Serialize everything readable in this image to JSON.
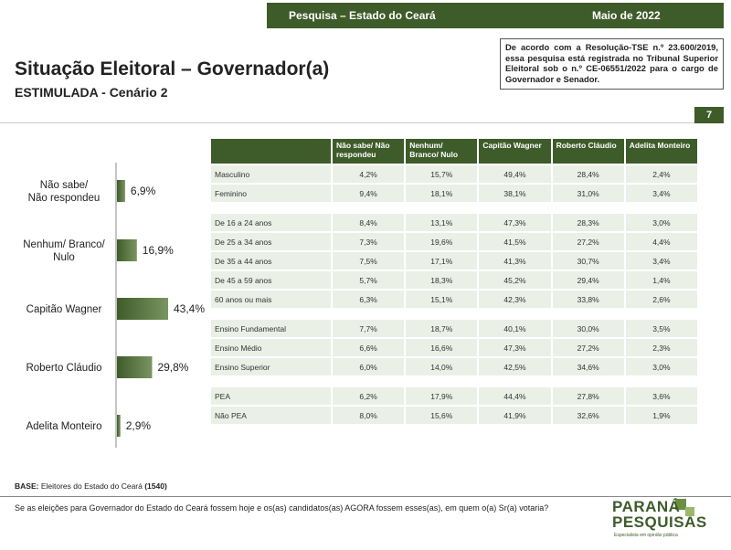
{
  "header": {
    "survey_label": "Pesquisa – Estado do Ceará",
    "date_label": "Maio de 2022",
    "page_number": "7"
  },
  "tse_notice": "De acordo com a Resolução-TSE n.º 23.600/2019, essa pesquisa está registrada no Tribunal Superior Eleitoral sob o n.º CE-06551/2022 para o cargo de Governador e Senador.",
  "title": "Situação Eleitoral – Governador(a)",
  "subtitle": "ESTIMULADA - Cenário 2",
  "chart_data": {
    "type": "bar",
    "orientation": "horizontal",
    "categories": [
      [
        "Não sabe/",
        "Não respondeu"
      ],
      [
        "Nenhum/ Branco/",
        "Nulo"
      ],
      [
        "Capitão Wagner"
      ],
      [
        "Roberto Cláudio"
      ],
      [
        "Adelita Monteiro"
      ]
    ],
    "values": [
      6.9,
      16.9,
      43.4,
      29.8,
      2.9
    ],
    "value_labels": [
      "6,9%",
      "16,9%",
      "43,4%",
      "29,8%",
      "2,9%"
    ],
    "bar_color": "#3e5b2a",
    "xlim": [
      0,
      43.4
    ],
    "grid": false
  },
  "crosstab": {
    "columns": [
      "Não sabe/ Não respondeu",
      "Nenhum/ Branco/ Nulo",
      "Capitão Wagner",
      "Roberto Cláudio",
      "Adelita Monteiro"
    ],
    "groups": [
      {
        "rows": [
          {
            "label": "Masculino",
            "values": [
              "4,2%",
              "15,7%",
              "49,4%",
              "28,4%",
              "2,4%"
            ]
          },
          {
            "label": "Feminino",
            "values": [
              "9,4%",
              "18,1%",
              "38,1%",
              "31,0%",
              "3,4%"
            ]
          }
        ]
      },
      {
        "rows": [
          {
            "label": "De 16 a 24 anos",
            "values": [
              "8,4%",
              "13,1%",
              "47,3%",
              "28,3%",
              "3,0%"
            ]
          },
          {
            "label": "De 25 a 34 anos",
            "values": [
              "7,3%",
              "19,6%",
              "41,5%",
              "27,2%",
              "4,4%"
            ]
          },
          {
            "label": "De 35 a 44 anos",
            "values": [
              "7,5%",
              "17,1%",
              "41,3%",
              "30,7%",
              "3,4%"
            ]
          },
          {
            "label": "De 45 a 59 anos",
            "values": [
              "5,7%",
              "18,3%",
              "45,2%",
              "29,4%",
              "1,4%"
            ]
          },
          {
            "label": "60 anos ou mais",
            "values": [
              "6,3%",
              "15,1%",
              "42,3%",
              "33,8%",
              "2,6%"
            ]
          }
        ]
      },
      {
        "rows": [
          {
            "label": "Ensino Fundamental",
            "values": [
              "7,7%",
              "18,7%",
              "40,1%",
              "30,0%",
              "3,5%"
            ]
          },
          {
            "label": "Ensino Médio",
            "values": [
              "6,6%",
              "16,6%",
              "47,3%",
              "27,2%",
              "2,3%"
            ]
          },
          {
            "label": "Ensino Superior",
            "values": [
              "6,0%",
              "14,0%",
              "42,5%",
              "34,6%",
              "3,0%"
            ]
          }
        ]
      },
      {
        "rows": [
          {
            "label": "PEA",
            "values": [
              "6,2%",
              "17,9%",
              "44,4%",
              "27,8%",
              "3,6%"
            ]
          },
          {
            "label": "Não PEA",
            "values": [
              "8,0%",
              "15,6%",
              "41,9%",
              "32,6%",
              "1,9%"
            ]
          }
        ]
      }
    ]
  },
  "footer": {
    "base_label": "BASE:",
    "base_text": " Eleitores do Estado do Ceará ",
    "base_count": "(1540)",
    "question": "Se as eleições para Governador do Estado do Ceará fossem hoje e os(as) candidatos(as) AGORA fossem esses(as), em quem o(a) Sr(a) votaria?"
  },
  "logo": {
    "line1": "PARANÁ",
    "line2": "PESQUISAS",
    "tagline": "Especialista em opinião pública"
  }
}
